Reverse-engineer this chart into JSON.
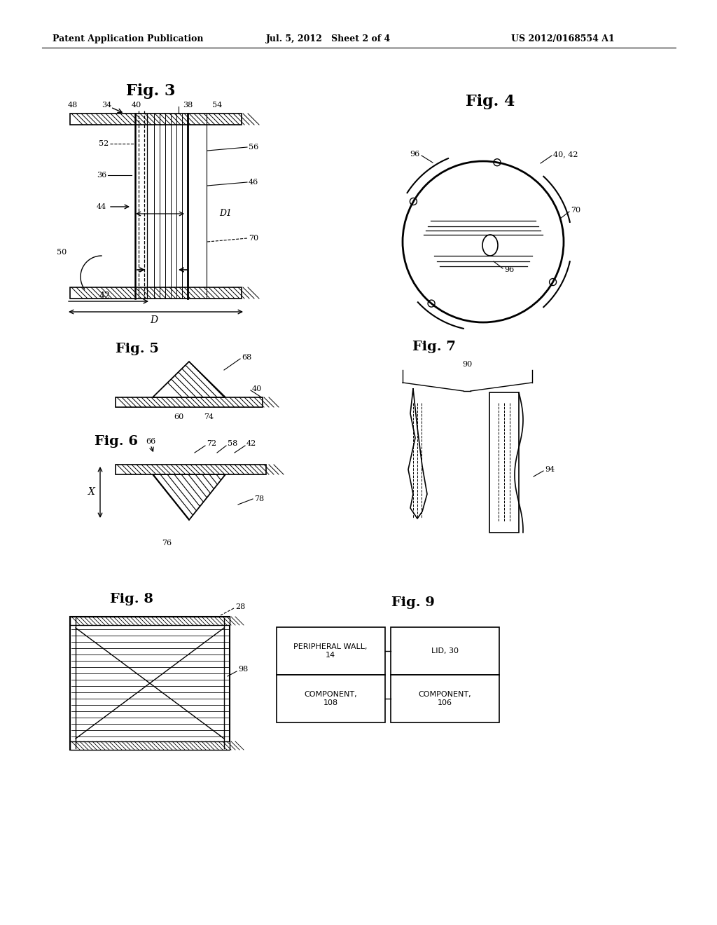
{
  "header_left": "Patent Application Publication",
  "header_mid": "Jul. 5, 2012   Sheet 2 of 4",
  "header_right": "US 2012/0168554 A1",
  "bg_color": "#ffffff",
  "line_color": "#000000"
}
